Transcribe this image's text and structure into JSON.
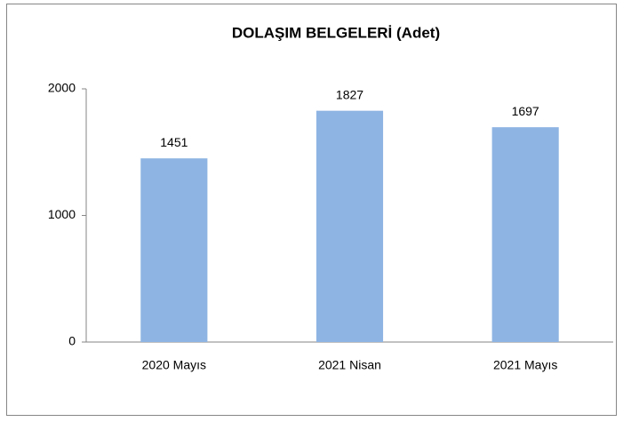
{
  "chart_data": {
    "type": "bar",
    "title": "DOLAŞIM BELGELERİ (Adet)",
    "categories": [
      "2020 Mayıs",
      "2021 Nisan",
      "2021 Mayıs"
    ],
    "values": [
      1451,
      1827,
      1697
    ],
    "color": "#8eb4e3",
    "ylim": [
      0,
      2000
    ],
    "yticks": [
      0,
      1000,
      2000
    ],
    "grid": false
  }
}
